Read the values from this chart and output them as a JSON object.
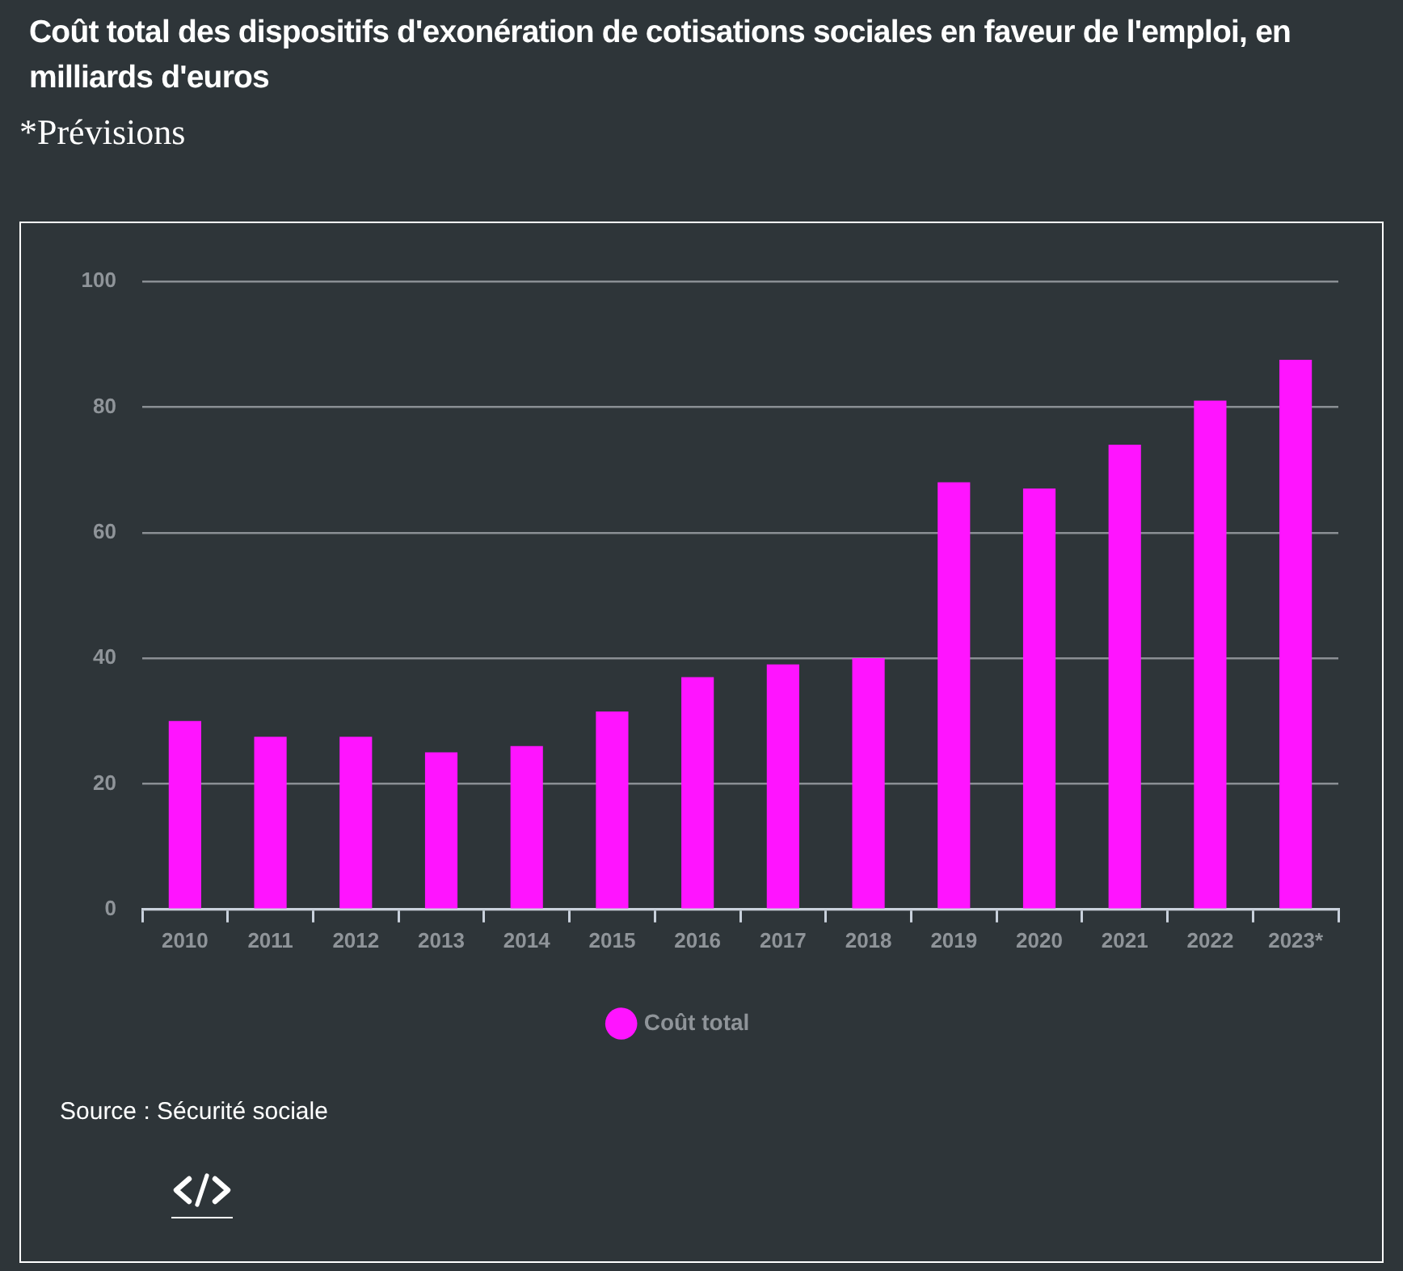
{
  "chart_data": {
    "type": "bar",
    "title": "Coût total des dispositifs d'exonération de cotisations sociales en faveur de l'emploi, en milliards d'euros",
    "subtitle": "*Prévisions",
    "categories": [
      "2010",
      "2011",
      "2012",
      "2013",
      "2014",
      "2015",
      "2016",
      "2017",
      "2018",
      "2019",
      "2020",
      "2021",
      "2022",
      "2023*"
    ],
    "series": [
      {
        "name": "Coût total",
        "color": "#ff14ff",
        "values": [
          30,
          27.5,
          27.5,
          25,
          26,
          31.5,
          37,
          39,
          40,
          68,
          67,
          74,
          81,
          87.5
        ]
      }
    ],
    "ylim": [
      0,
      100
    ],
    "yticks": [
      0,
      20,
      40,
      60,
      80,
      100
    ],
    "grid": "y",
    "legend": "bottom",
    "annotations": [
      "Source : Sécurité sociale"
    ]
  }
}
